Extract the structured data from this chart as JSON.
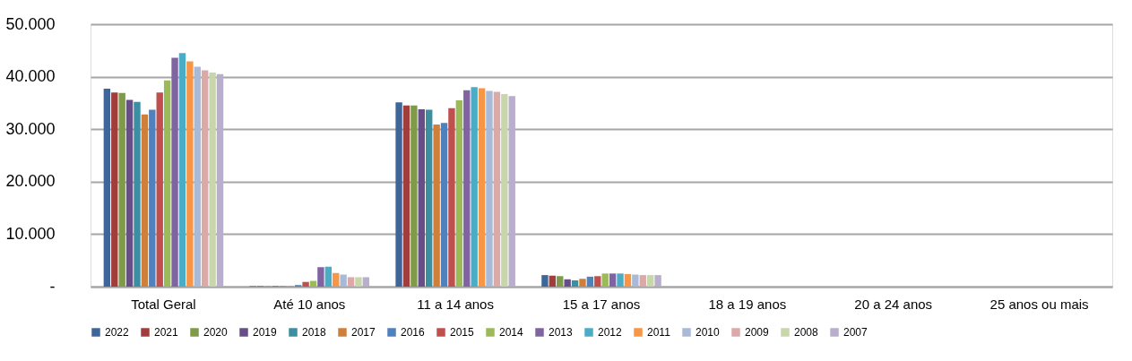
{
  "chart_data": {
    "type": "bar",
    "categories": [
      "Total Geral",
      "Até 10 anos",
      "11 a 14 anos",
      "15 a 17 anos",
      "18 a 19 anos",
      "20 a 24 anos",
      "25 anos ou mais"
    ],
    "series": [
      {
        "name": "2022",
        "color": "#3f6698",
        "values": [
          37700,
          100,
          35100,
          2200,
          0,
          0,
          0
        ]
      },
      {
        "name": "2021",
        "color": "#a13e3b",
        "values": [
          37000,
          100,
          34500,
          2100,
          0,
          0,
          0
        ]
      },
      {
        "name": "2020",
        "color": "#7f9a49",
        "values": [
          36900,
          100,
          34500,
          2000,
          0,
          0,
          0
        ]
      },
      {
        "name": "2019",
        "color": "#674e88",
        "values": [
          35600,
          100,
          33800,
          1400,
          0,
          0,
          0
        ]
      },
      {
        "name": "2018",
        "color": "#3c8ea3",
        "values": [
          35200,
          100,
          33700,
          1200,
          0,
          0,
          0
        ]
      },
      {
        "name": "2017",
        "color": "#d07f3a",
        "values": [
          32800,
          100,
          30900,
          1500,
          0,
          0,
          0
        ]
      },
      {
        "name": "2016",
        "color": "#4f81bd",
        "values": [
          33700,
          300,
          31200,
          1900,
          0,
          0,
          0
        ]
      },
      {
        "name": "2015",
        "color": "#c0504d",
        "values": [
          37000,
          900,
          34000,
          2000,
          0,
          0,
          0
        ]
      },
      {
        "name": "2014",
        "color": "#9bbb59",
        "values": [
          39300,
          1100,
          35500,
          2500,
          0,
          0,
          0
        ]
      },
      {
        "name": "2013",
        "color": "#8064a2",
        "values": [
          43600,
          3700,
          37400,
          2500,
          0,
          0,
          0
        ]
      },
      {
        "name": "2012",
        "color": "#4bacc6",
        "values": [
          44500,
          3800,
          38000,
          2500,
          0,
          0,
          0
        ]
      },
      {
        "name": "2011",
        "color": "#f79646",
        "values": [
          42900,
          2600,
          37800,
          2400,
          0,
          0,
          0
        ]
      },
      {
        "name": "2010",
        "color": "#a9b9d8",
        "values": [
          41900,
          2300,
          37300,
          2300,
          0,
          0,
          0
        ]
      },
      {
        "name": "2009",
        "color": "#dba9a8",
        "values": [
          41200,
          1800,
          37100,
          2200,
          0,
          0,
          0
        ]
      },
      {
        "name": "2008",
        "color": "#c8d6ab",
        "values": [
          40800,
          1800,
          36700,
          2200,
          0,
          0,
          0
        ]
      },
      {
        "name": "2007",
        "color": "#b9aecc",
        "values": [
          40500,
          1800,
          36300,
          2200,
          0,
          0,
          0
        ]
      }
    ],
    "ylim": [
      0,
      50000
    ],
    "yticks": [
      {
        "value": 0,
        "label": "-"
      },
      {
        "value": 10000,
        "label": "10.000"
      },
      {
        "value": 20000,
        "label": "20.000"
      },
      {
        "value": 30000,
        "label": "30.000"
      },
      {
        "value": 40000,
        "label": "40.000"
      },
      {
        "value": 50000,
        "label": "50.000"
      }
    ],
    "grid": "y",
    "legend": "bottom"
  }
}
